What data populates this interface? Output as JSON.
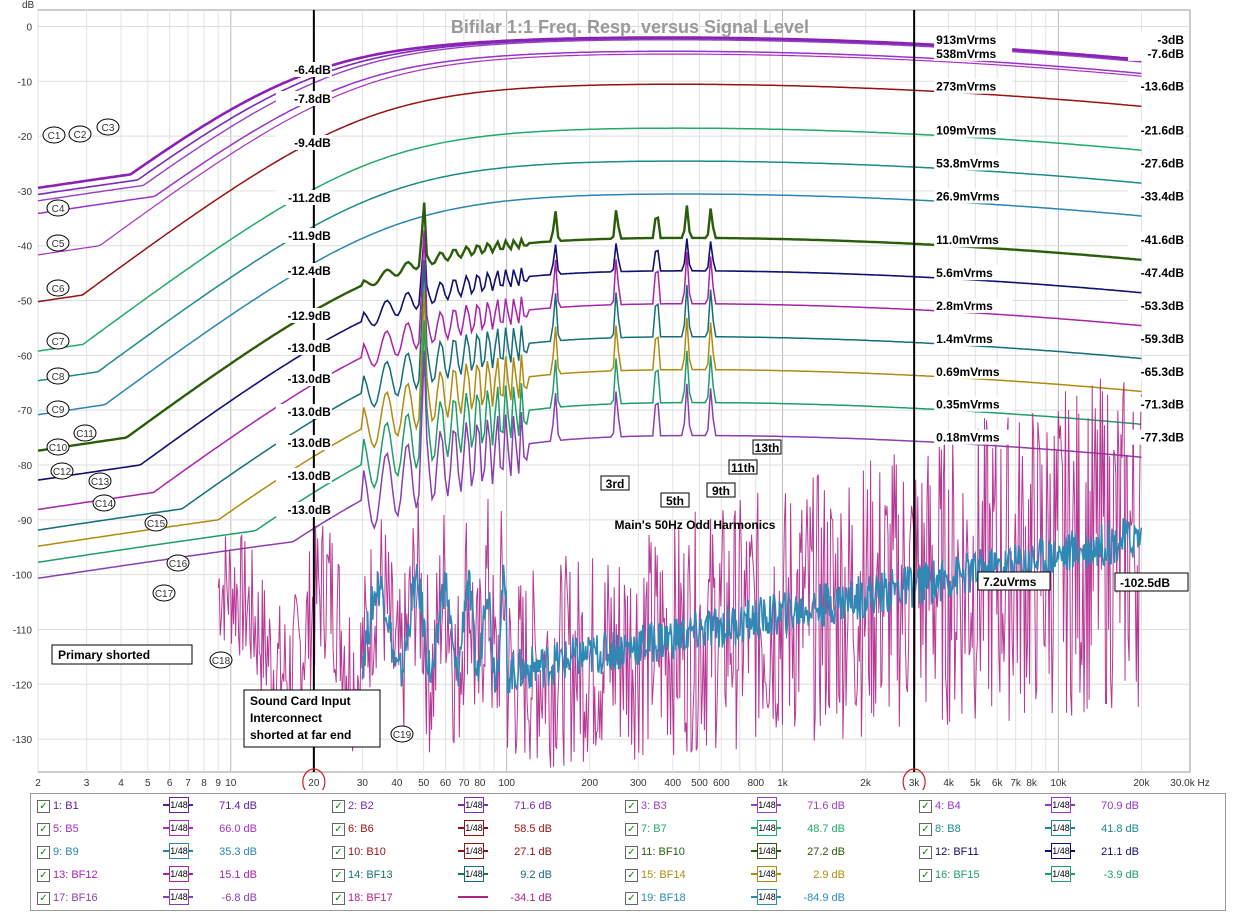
{
  "chart_data": {
    "type": "line",
    "title": "Bifilar 1:1 Freq. Resp. versus Signal Level",
    "ylabel": "dB",
    "xlabel": "Hz",
    "xscale": "log",
    "xlim": [
      2,
      30000
    ],
    "ylim": [
      -136,
      3
    ],
    "yticks": [
      0,
      -10,
      -20,
      -30,
      -40,
      -50,
      -60,
      -70,
      -80,
      -90,
      -100,
      -110,
      -120,
      -130
    ],
    "xticks": [
      {
        "v": 2,
        "t": "2"
      },
      {
        "v": 3,
        "t": "3"
      },
      {
        "v": 4,
        "t": "4"
      },
      {
        "v": 5,
        "t": "5"
      },
      {
        "v": 6,
        "t": "6"
      },
      {
        "v": 7,
        "t": "7"
      },
      {
        "v": 8,
        "t": "8"
      },
      {
        "v": 9,
        "t": "9"
      },
      {
        "v": 10,
        "t": "10"
      },
      {
        "v": 20,
        "t": "20"
      },
      {
        "v": 30,
        "t": "30"
      },
      {
        "v": 40,
        "t": "40"
      },
      {
        "v": 50,
        "t": "50"
      },
      {
        "v": 60,
        "t": "60"
      },
      {
        "v": 70,
        "t": "70"
      },
      {
        "v": 80,
        "t": "80"
      },
      {
        "v": 100,
        "t": "100"
      },
      {
        "v": 200,
        "t": "200"
      },
      {
        "v": 300,
        "t": "300"
      },
      {
        "v": 400,
        "t": "400"
      },
      {
        "v": 500,
        "t": "500"
      },
      {
        "v": 600,
        "t": "600"
      },
      {
        "v": 800,
        "t": "800"
      },
      {
        "v": 1000,
        "t": "1k"
      },
      {
        "v": 2000,
        "t": "2k"
      },
      {
        "v": 3000,
        "t": "3k"
      },
      {
        "v": 4000,
        "t": "4k"
      },
      {
        "v": 5000,
        "t": "5k"
      },
      {
        "v": 6000,
        "t": "6k"
      },
      {
        "v": 7000,
        "t": "7k"
      },
      {
        "v": 8000,
        "t": "8k"
      },
      {
        "v": 10000,
        "t": "10k"
      },
      {
        "v": 20000,
        "t": "20k"
      },
      {
        "v": 30000,
        "t": "30.0k Hz"
      }
    ],
    "markers": [
      20,
      3000
    ],
    "series": [
      {
        "name": "B1",
        "color": "#8e1fb4",
        "level": "913mVrms",
        "hf": "-3dB",
        "v20": "-6.4dB",
        "peak": -2,
        "width": 2.6,
        "low": -27,
        "hasSpikes": false
      },
      {
        "name": "B2",
        "color": "#7b2bb8",
        "level": "",
        "hf": "",
        "v20": "",
        "peak": -2.2,
        "width": 1.6,
        "low": -28,
        "hasSpikes": false
      },
      {
        "name": "B3",
        "color": "#9b3fc2",
        "level": "",
        "hf": "",
        "v20": "",
        "peak": -2.4,
        "width": 1.4,
        "low": -29,
        "hasSpikes": false
      },
      {
        "name": "B4",
        "color": "#9933cc",
        "level": "538mVrms",
        "hf": "-7.6dB",
        "v20": "-7.8dB",
        "peak": -4.5,
        "width": 1.5,
        "low": -31,
        "hasSpikes": false
      },
      {
        "name": "B5",
        "color": "#aa2fbf",
        "level": "",
        "hf": "",
        "v20": "",
        "peak": -5,
        "width": 1.2,
        "low": -40,
        "hasSpikes": false
      },
      {
        "name": "B6",
        "color": "#991111",
        "level": "273mVrms",
        "hf": "-13.6dB",
        "v20": "-9.4dB",
        "peak": -10.5,
        "width": 1.5,
        "low": -49,
        "hasSpikes": false
      },
      {
        "name": "B7",
        "color": "#22aa66",
        "level": "109mVrms",
        "hf": "-21.6dB",
        "v20": "-11.2dB",
        "peak": -18.5,
        "width": 1.5,
        "low": -58,
        "hasSpikes": false
      },
      {
        "name": "B8",
        "color": "#1c8a8a",
        "level": "53.8mVrms",
        "hf": "-27.6dB",
        "v20": "-11.9dB",
        "peak": -24.5,
        "width": 1.5,
        "low": -63,
        "hasSpikes": false
      },
      {
        "name": "B9",
        "color": "#2a86b0",
        "level": "26.9mVrms",
        "hf": "-33.4dB",
        "v20": "-12.4dB",
        "peak": -30.5,
        "width": 1.5,
        "low": -69,
        "hasSpikes": false
      },
      {
        "name": "B10",
        "color": "#2a5c0a",
        "level": "11.0mVrms",
        "hf": "-41.6dB",
        "v20": "-12.9dB",
        "peak": -38.5,
        "width": 2.4,
        "low": -75,
        "hasSpikes": true
      },
      {
        "name": "BF11",
        "color": "#101070",
        "level": "5.6mVrms",
        "hf": "-47.4dB",
        "v20": "-13.0dB",
        "peak": -44.5,
        "width": 1.6,
        "low": -80,
        "hasSpikes": true
      },
      {
        "name": "BF12",
        "color": "#aa22aa",
        "level": "2.8mVrms",
        "hf": "-53.3dB",
        "v20": "-13.0dB",
        "peak": -50.5,
        "width": 1.5,
        "low": -85,
        "hasSpikes": true
      },
      {
        "name": "BF13",
        "color": "#136e7a",
        "level": "1.4mVrms",
        "hf": "-59.3dB",
        "v20": "-13.0dB",
        "peak": -56.5,
        "width": 1.5,
        "low": -88,
        "hasSpikes": true
      },
      {
        "name": "BF14",
        "color": "#b08b10",
        "level": "0.69mVrms",
        "hf": "-65.3dB",
        "v20": "-13.0dB",
        "peak": -62.5,
        "width": 1.5,
        "low": -90,
        "hasSpikes": true
      },
      {
        "name": "BF15",
        "color": "#1f9e6a",
        "level": "0.35mVrms",
        "hf": "-71.3dB",
        "v20": "-13.0dB",
        "peak": -68.5,
        "width": 1.5,
        "low": -92,
        "hasSpikes": true
      },
      {
        "name": "BF16",
        "color": "#8a3fb0",
        "level": "0.18mVrms",
        "hf": "-77.3dB",
        "v20": "-13.0dB",
        "peak": -74.5,
        "width": 1.5,
        "low": -94,
        "hasSpikes": true
      }
    ],
    "noise_traces": [
      {
        "name": "BF17",
        "color": "#b0228a",
        "note": "Primary shorted"
      },
      {
        "name": "BF18",
        "color": "#2e8ab5",
        "note": "Sound Card Input Interconnect shorted at far end"
      }
    ],
    "curve_labels": [
      "C1",
      "C2",
      "C3",
      "C4",
      "C5",
      "C6",
      "C7",
      "C8",
      "C9",
      "C10",
      "C11",
      "C12",
      "C13",
      "C14",
      "C15",
      "C16",
      "C17",
      "C18",
      "C19"
    ],
    "harmonic_labels": [
      "3rd",
      "5th",
      "9th",
      "11th",
      "13th"
    ],
    "annotations": {
      "harmonics_caption": "Main's 50Hz Odd Harmonics",
      "noise_level": "7.2uVrms",
      "noise_db": "-102.5dB",
      "primary_shorted": "Primary shorted",
      "sound_card_1": "Sound Card Input",
      "sound_card_2": "Interconnect",
      "sound_card_3": "shorted at far end"
    }
  },
  "legend": {
    "rows": [
      [
        {
          "id": "1: B1",
          "val": "71.4 dB",
          "color": "#5a1f9c"
        },
        {
          "id": "2: B2",
          "val": "71.6 dB",
          "color": "#7b2bb8"
        },
        {
          "id": "3: B3",
          "val": "71.6 dB",
          "color": "#9b3fc2"
        },
        {
          "id": "4: B4",
          "val": "70.9 dB",
          "color": "#9933cc"
        }
      ],
      [
        {
          "id": "5: B5",
          "val": "66.0 dB",
          "color": "#aa2fbf"
        },
        {
          "id": "6: B6",
          "val": "58.5 dB",
          "color": "#991111"
        },
        {
          "id": "7: B7",
          "val": "48.7 dB",
          "color": "#22aa66"
        },
        {
          "id": "8: B8",
          "val": "41.8 dB",
          "color": "#1c8a8a"
        }
      ],
      [
        {
          "id": "9: B9",
          "val": "35.3 dB",
          "color": "#2a86b0"
        },
        {
          "id": "10: B10",
          "val": "27.1 dB",
          "color": "#991111"
        },
        {
          "id": "11: BF10",
          "val": "27.2 dB",
          "color": "#2a5c0a"
        },
        {
          "id": "12: BF11",
          "val": "21.1 dB",
          "color": "#101070"
        }
      ],
      [
        {
          "id": "13: BF12",
          "val": "15.1 dB",
          "color": "#aa22aa"
        },
        {
          "id": "14: BF13",
          "val": "9.2 dB",
          "color": "#136e7a"
        },
        {
          "id": "15: BF14",
          "val": "2.9 dB",
          "color": "#b08b10"
        },
        {
          "id": "16: BF15",
          "val": "-3.9 dB",
          "color": "#1f9e6a"
        }
      ],
      [
        {
          "id": "17: BF16",
          "val": "-6.8 dB",
          "color": "#8a3fb0"
        },
        {
          "id": "18: BF17",
          "val": "-34.1 dB",
          "color": "#b0228a",
          "lineOnly": true
        },
        {
          "id": "19: BF18",
          "val": "-84.9 dB",
          "color": "#2e8ab5"
        }
      ]
    ],
    "scale_glyph": "1/48"
  }
}
